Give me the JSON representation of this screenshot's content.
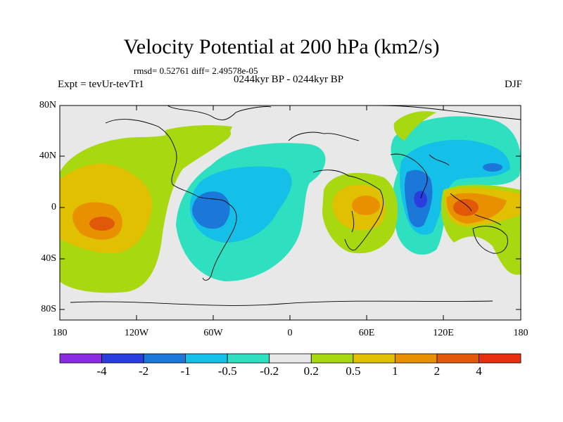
{
  "title": "Velocity Potential at 200 hPa (km2/s)",
  "stats": "rmsd= 0.52761 diff= 2.49578e-05",
  "subtitle": "0244kyr BP - 0244kyr BP",
  "experiment": "Expt = tevUr-tevTr1",
  "season": "DJF",
  "lat_labels": [
    "80N",
    "40N",
    "0",
    "40S",
    "80S"
  ],
  "lon_labels": [
    "180",
    "120W",
    "60W",
    "0",
    "60E",
    "120E",
    "180"
  ],
  "colorbar": {
    "labels": [
      "-4",
      "-2",
      "-1",
      "-0.5",
      "-0.2",
      "0.2",
      "0.5",
      "1",
      "2",
      "4"
    ],
    "colors": [
      "#8a2be2",
      "#2a3ee0",
      "#1b78d8",
      "#15c0e8",
      "#2fe0c0",
      "#e8e8e8",
      "#a8d810",
      "#e0c000",
      "#e89000",
      "#e05808",
      "#e83010"
    ]
  },
  "colors": {
    "background": "#e8e8e8",
    "neg_strong": "#1b78d8",
    "neg_mid": "#15c0e8",
    "neg_weak": "#2fe0c0",
    "pos_weak": "#a8d810",
    "pos_mid": "#e0c000",
    "pos_strong": "#e89000",
    "pos_high": "#e05808",
    "neg_extreme": "#2a3ee0"
  }
}
